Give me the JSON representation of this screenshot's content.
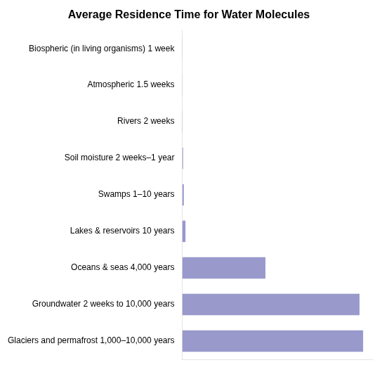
{
  "chart_data": {
    "type": "bar",
    "orientation": "horizontal",
    "title": "Average Residence Time for Water Molecules",
    "categories": [
      "Biospheric (in living organisms) 1 week",
      "Atmospheric 1.5 weeks",
      "Rivers 2 weeks",
      "Soil moisture 2 weeks–1 year",
      "Swamps 1–10 years",
      "Lakes & reservoirs 10 years",
      "Oceans & seas 4,000 years",
      "Groundwater 2 weeks to 10,000 years",
      "Glaciers and permafrost 1,000–10,000 years"
    ],
    "values": [
      0.001,
      0.0015,
      0.002,
      0.005,
      0.009,
      0.018,
      0.46,
      0.98,
      1.0
    ],
    "color": "#9999cc",
    "xlim": [
      0,
      1.05
    ],
    "grid": false,
    "tick_labels": "y"
  }
}
